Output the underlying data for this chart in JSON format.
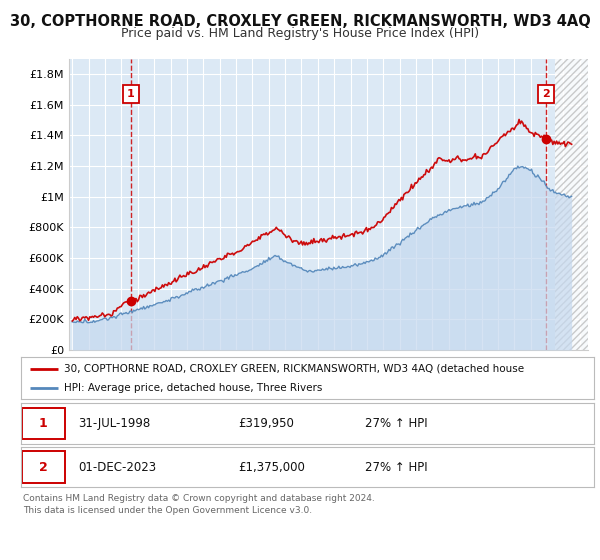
{
  "title": "30, COPTHORNE ROAD, CROXLEY GREEN, RICKMANSWORTH, WD3 4AQ",
  "subtitle": "Price paid vs. HM Land Registry's House Price Index (HPI)",
  "background_color": "#ffffff",
  "plot_bg_color": "#dce9f5",
  "grid_color": "#ffffff",
  "red_color": "#cc0000",
  "blue_color": "#5588bb",
  "hpi_fill_color": "#c5d8ee",
  "sale1_x": 1998.58,
  "sale1_y": 319950,
  "sale1_label": "1",
  "sale2_x": 2023.92,
  "sale2_y": 1375000,
  "sale2_label": "2",
  "xmin": 1994.8,
  "xmax": 2026.5,
  "ymin": 0,
  "ymax": 1900000,
  "yticks": [
    0,
    200000,
    400000,
    600000,
    800000,
    1000000,
    1200000,
    1400000,
    1600000,
    1800000
  ],
  "ytick_labels": [
    "£0",
    "£200K",
    "£400K",
    "£600K",
    "£800K",
    "£1M",
    "£1.2M",
    "£1.4M",
    "£1.6M",
    "£1.8M"
  ],
  "xticks": [
    1995,
    1996,
    1997,
    1998,
    1999,
    2000,
    2001,
    2002,
    2003,
    2004,
    2005,
    2006,
    2007,
    2008,
    2009,
    2010,
    2011,
    2012,
    2013,
    2014,
    2015,
    2016,
    2017,
    2018,
    2019,
    2020,
    2021,
    2022,
    2023,
    2024,
    2025,
    2026
  ],
  "legend_label_red": "30, COPTHORNE ROAD, CROXLEY GREEN, RICKMANSWORTH, WD3 4AQ (detached house",
  "legend_label_blue": "HPI: Average price, detached house, Three Rivers",
  "table_row1": [
    "1",
    "31-JUL-1998",
    "£319,950",
    "27% ↑ HPI"
  ],
  "table_row2": [
    "2",
    "01-DEC-2023",
    "£1,375,000",
    "27% ↑ HPI"
  ],
  "footer": "Contains HM Land Registry data © Crown copyright and database right 2024.\nThis data is licensed under the Open Government Licence v3.0.",
  "title_fontsize": 10.5,
  "subtitle_fontsize": 9
}
